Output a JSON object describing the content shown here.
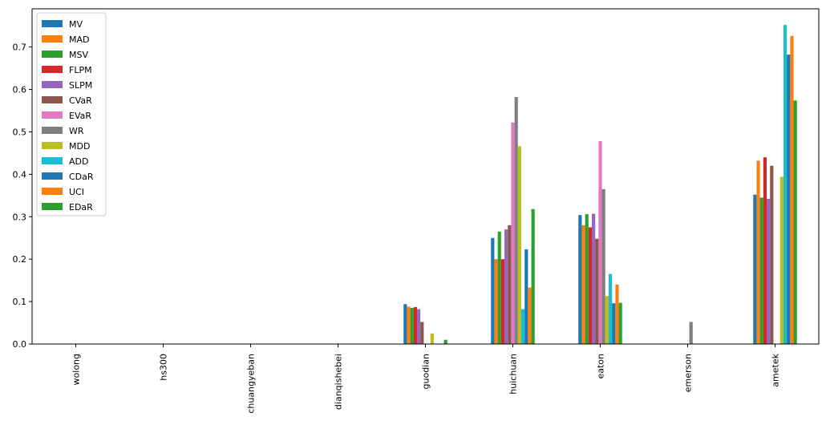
{
  "chart_data": {
    "type": "bar",
    "title": "",
    "xlabel": "",
    "ylabel": "",
    "ylim": [
      0,
      0.79
    ],
    "yticks": [
      0.0,
      0.1,
      0.2,
      0.3,
      0.4,
      0.5,
      0.6,
      0.7
    ],
    "ytick_labels": [
      "0.0",
      "0.1",
      "0.2",
      "0.3",
      "0.4",
      "0.5",
      "0.6",
      "0.7"
    ],
    "grid": false,
    "legend_position": "top-left",
    "categories": [
      "wolong",
      "hs300",
      "chuangyeban",
      "dianqishebei",
      "guodian",
      "huichuan",
      "eaton",
      "emerson",
      "ametek"
    ],
    "series": [
      {
        "name": "MV",
        "color": "#1f77b4",
        "values": [
          0,
          0,
          0,
          0,
          0.094,
          0.25,
          0.304,
          0,
          0.352
        ]
      },
      {
        "name": "MAD",
        "color": "#ff7f0e",
        "values": [
          0,
          0,
          0,
          0,
          0.088,
          0.2,
          0.28,
          0,
          0.432
        ]
      },
      {
        "name": "MSV",
        "color": "#2ca02c",
        "values": [
          0,
          0,
          0,
          0,
          0.085,
          0.265,
          0.306,
          0,
          0.345
        ]
      },
      {
        "name": "FLPM",
        "color": "#d62728",
        "values": [
          0,
          0,
          0,
          0,
          0.087,
          0.2,
          0.275,
          0,
          0.44
        ]
      },
      {
        "name": "SLPM",
        "color": "#9467bd",
        "values": [
          0,
          0,
          0,
          0,
          0.082,
          0.27,
          0.307,
          0,
          0.342
        ]
      },
      {
        "name": "CVaR",
        "color": "#8c564b",
        "values": [
          0,
          0,
          0,
          0,
          0.052,
          0.28,
          0.248,
          0,
          0.42
        ]
      },
      {
        "name": "EVaR",
        "color": "#e377c2",
        "values": [
          0,
          0,
          0,
          0,
          0,
          0.522,
          0.478,
          0,
          0
        ]
      },
      {
        "name": "WR",
        "color": "#7f7f7f",
        "values": [
          0,
          0,
          0,
          0,
          0,
          0.582,
          0.365,
          0.052,
          0
        ]
      },
      {
        "name": "MDD",
        "color": "#bcbd22",
        "values": [
          0,
          0,
          0,
          0,
          0.025,
          0.466,
          0.113,
          0,
          0.394
        ]
      },
      {
        "name": "ADD",
        "color": "#17becf",
        "values": [
          0,
          0,
          0,
          0,
          0,
          0.082,
          0.165,
          0,
          0.752
        ]
      },
      {
        "name": "CDaR",
        "color": "#1f77b4",
        "values": [
          0,
          0,
          0,
          0,
          0,
          0.223,
          0.096,
          0,
          0.682
        ]
      },
      {
        "name": "UCI",
        "color": "#ff7f0e",
        "values": [
          0,
          0,
          0,
          0,
          0,
          0.133,
          0.14,
          0,
          0.726
        ]
      },
      {
        "name": "EDaR",
        "color": "#2ca02c",
        "values": [
          0,
          0,
          0,
          0,
          0.01,
          0.318,
          0.097,
          0,
          0.574
        ]
      }
    ]
  }
}
